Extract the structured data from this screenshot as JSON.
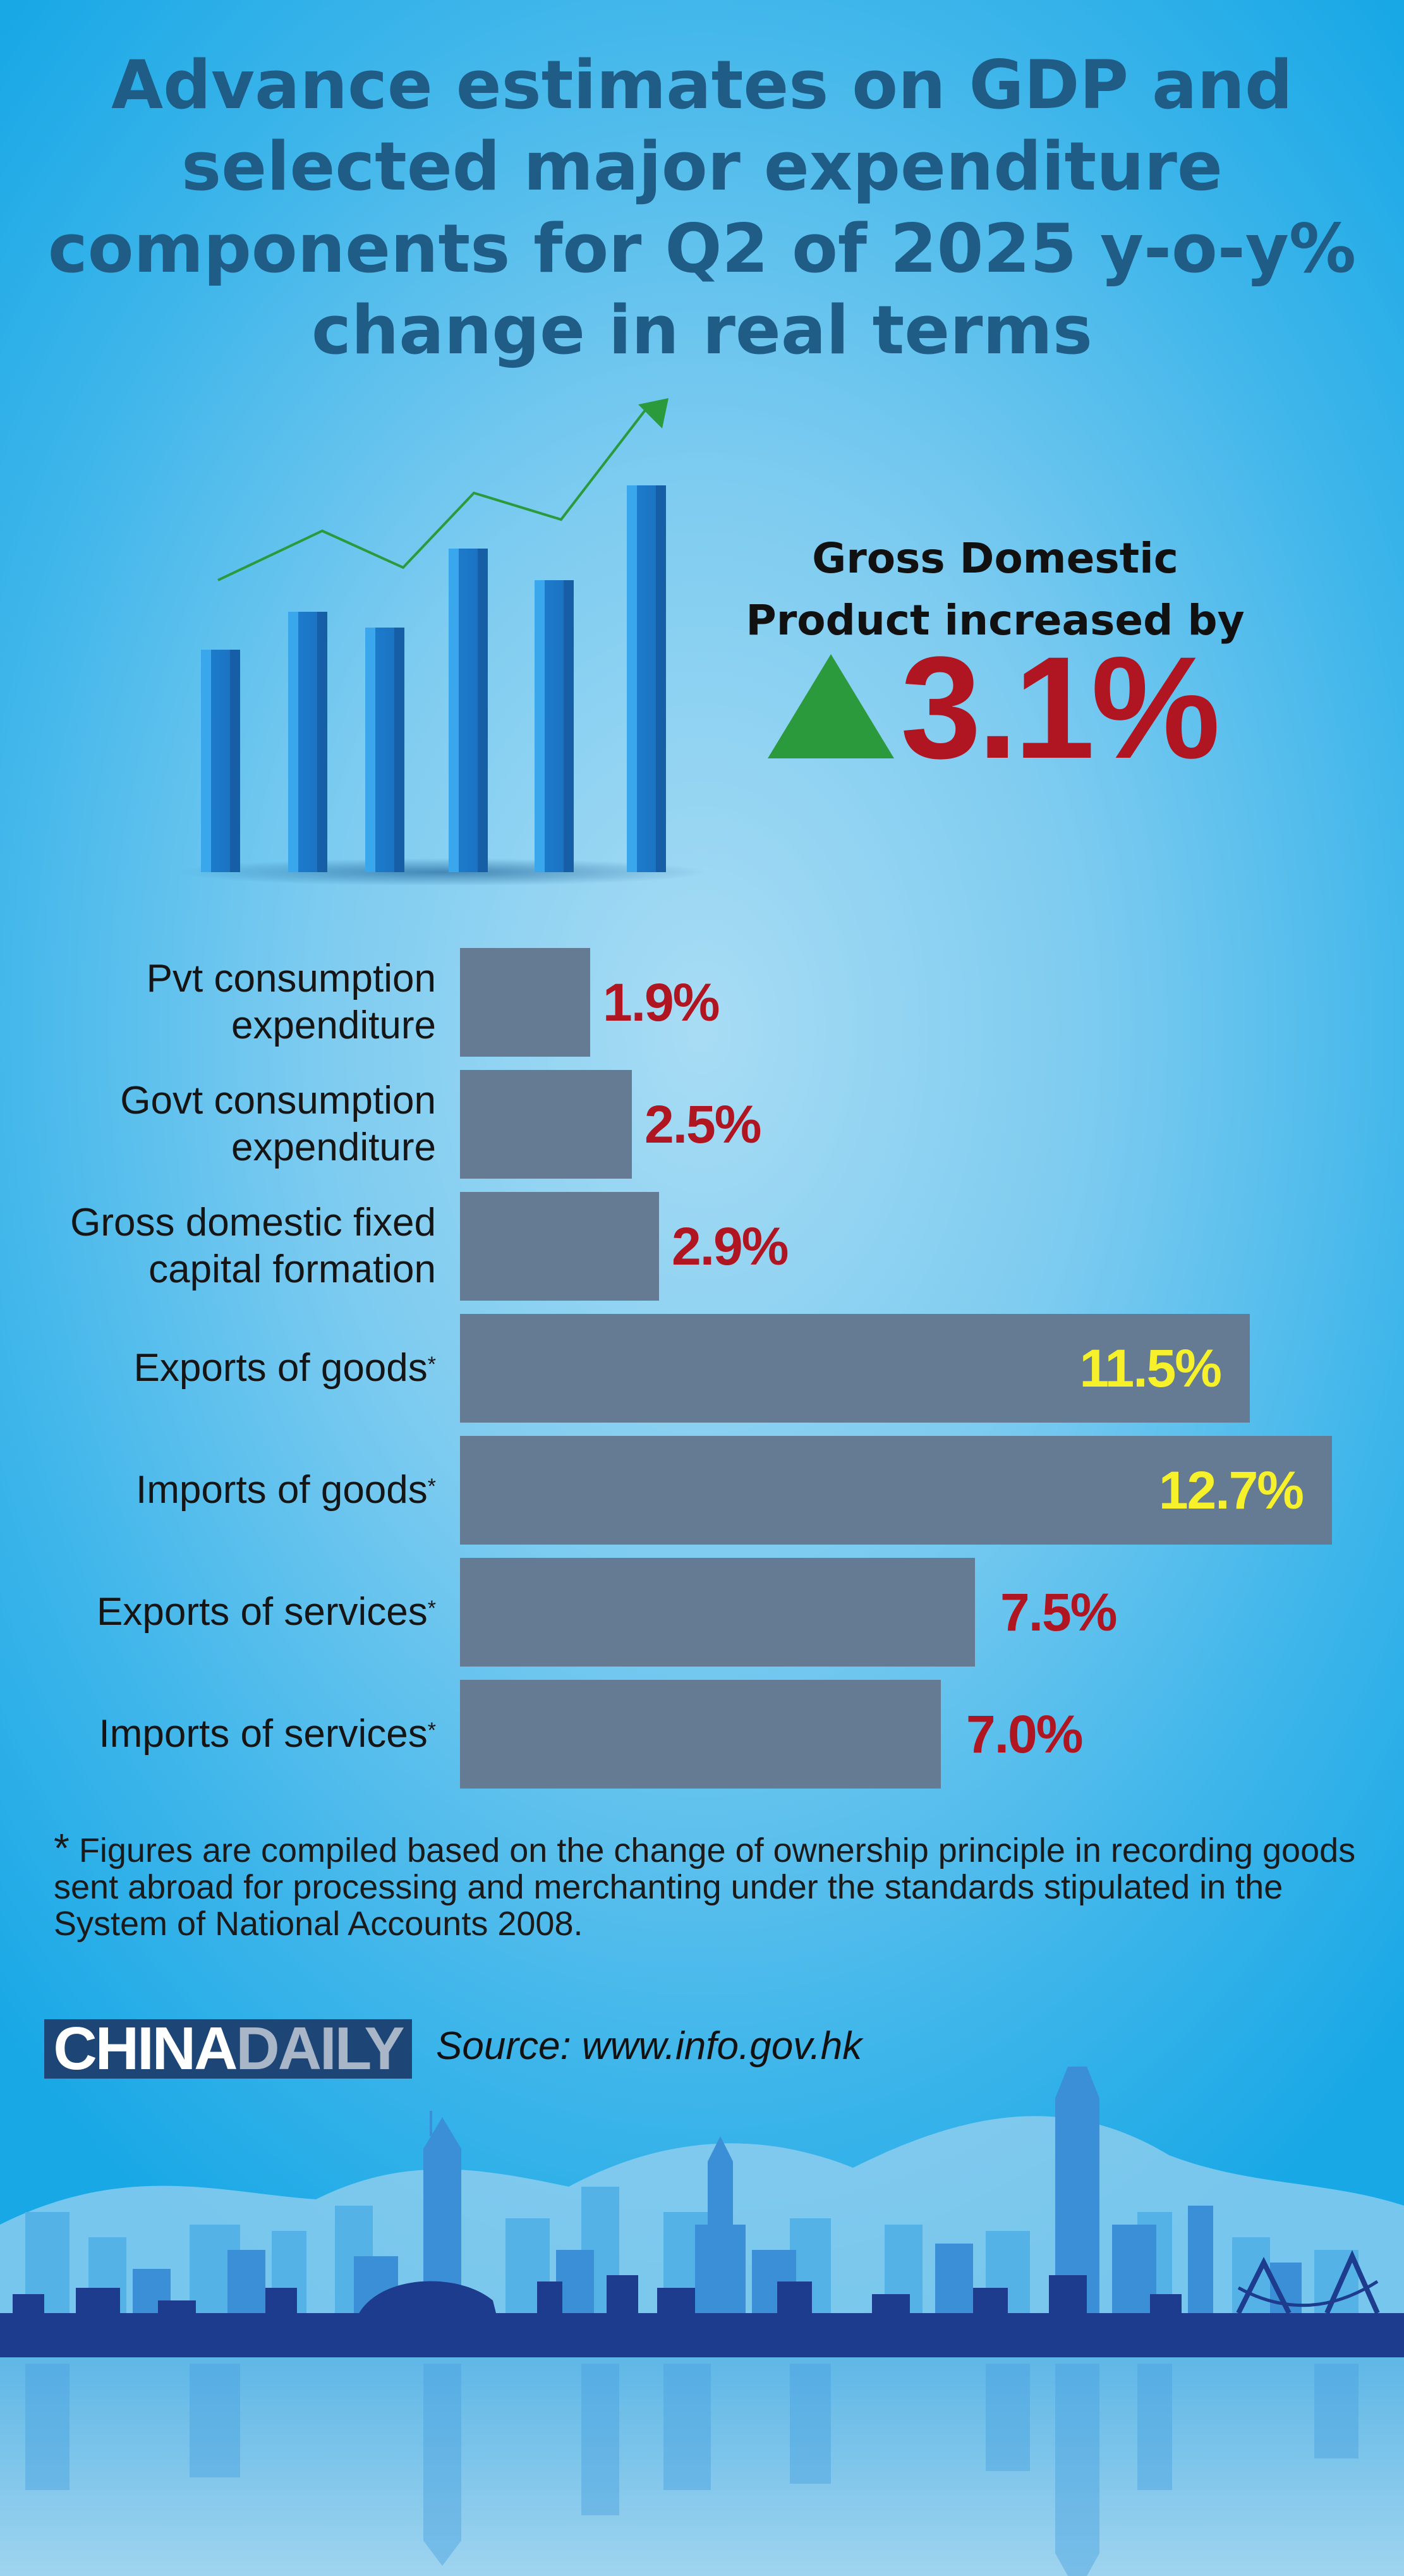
{
  "title": "Advance estimates on GDP and selected major expenditure components for Q2 of 2025 y-o-y% change in real terms",
  "gdp": {
    "label": "Gross Domestic Product increased by",
    "value": "3.1%",
    "direction_icon": "up-triangle-icon",
    "color": "#b01622"
  },
  "chart_data": {
    "type": "bar",
    "orientation": "horizontal",
    "categories": [
      "Pvt consumption expenditure",
      "Govt consumption expenditure",
      "Gross domestic fixed capital formation",
      "Exports of goods*",
      "Imports of goods*",
      "Exports of services*",
      "Imports of services*"
    ],
    "values": [
      1.9,
      2.5,
      2.9,
      11.5,
      12.7,
      7.5,
      7.0
    ],
    "value_labels": [
      "1.9%",
      "2.5%",
      "2.9%",
      "11.5%",
      "12.7%",
      "7.5%",
      "7.0%"
    ],
    "unit": "%",
    "bar_color": "#647b93",
    "label_color": "#b01622",
    "label_inside_color": "#f6f12a",
    "grid": false,
    "title": "",
    "xlabel": "",
    "ylabel": ""
  },
  "footnote": "Figures are compiled based on the change of ownership principle in recording goods sent abroad for processing and merchanting under the standards stipulated in the System of National Accounts 2008.",
  "footnote_marker": "*",
  "logo": {
    "part1": "CHINA",
    "part2": "DAILY"
  },
  "source": "Source: www.info.gov.hk",
  "colors": {
    "background": "#19a8e6",
    "title": "#1f5c86",
    "accent_green": "#2a9a3c",
    "skyline_dark": "#1e3c8e"
  }
}
